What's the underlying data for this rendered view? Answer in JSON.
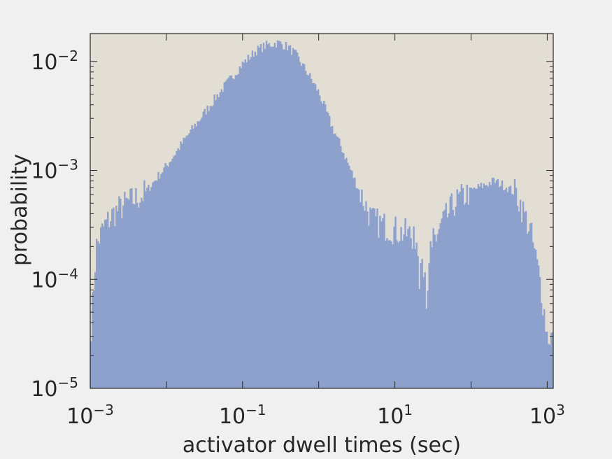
{
  "chart_data": {
    "type": "histogram",
    "xlabel": "activator dwell times (sec)",
    "ylabel": "probability",
    "xscale": "log",
    "yscale": "log",
    "xlim": [
      0.001,
      1200
    ],
    "ylim": [
      1e-05,
      0.018
    ],
    "grid": false,
    "colors": {
      "bars": "#8da1cc",
      "plot_background": "#e3ded3",
      "page_background": "#f0f0f0",
      "axes": "#262626"
    },
    "x_ticks": [
      {
        "base": "10",
        "exp": "−3",
        "value": 0.001
      },
      {
        "base": "10",
        "exp": "−1",
        "value": 0.1
      },
      {
        "base": "10",
        "exp": "1",
        "value": 10
      },
      {
        "base": "10",
        "exp": "3",
        "value": 1000
      }
    ],
    "y_ticks": [
      {
        "base": "10",
        "exp": "−5",
        "value": 1e-05
      },
      {
        "base": "10",
        "exp": "−4",
        "value": 0.0001
      },
      {
        "base": "10",
        "exp": "−3",
        "value": 0.001
      },
      {
        "base": "10",
        "exp": "−2",
        "value": 0.01
      }
    ],
    "profile": {
      "x": [
        0.001,
        0.0012,
        0.0015,
        0.002,
        0.003,
        0.005,
        0.01,
        0.02,
        0.05,
        0.1,
        0.15,
        0.2,
        0.25,
        0.3,
        0.4,
        0.5,
        0.7,
        1,
        1.5,
        2,
        3,
        5,
        8,
        12,
        18,
        25,
        30,
        40,
        60,
        100,
        200,
        300,
        400,
        600,
        800,
        1000,
        1100
      ],
      "y": [
        3e-05,
        0.0002,
        0.0003,
        0.0004,
        0.0005,
        0.0006,
        0.0011,
        0.0022,
        0.0052,
        0.0095,
        0.0125,
        0.014,
        0.0145,
        0.0148,
        0.0135,
        0.0115,
        0.008,
        0.0052,
        0.0025,
        0.0016,
        0.0008,
        0.00035,
        0.0003,
        0.00027,
        0.00025,
        0.00012,
        0.0002,
        0.0003,
        0.0005,
        0.00065,
        0.0008,
        0.0007,
        0.0006,
        0.00028,
        0.0001,
        3e-05,
        3e-05
      ]
    }
  }
}
